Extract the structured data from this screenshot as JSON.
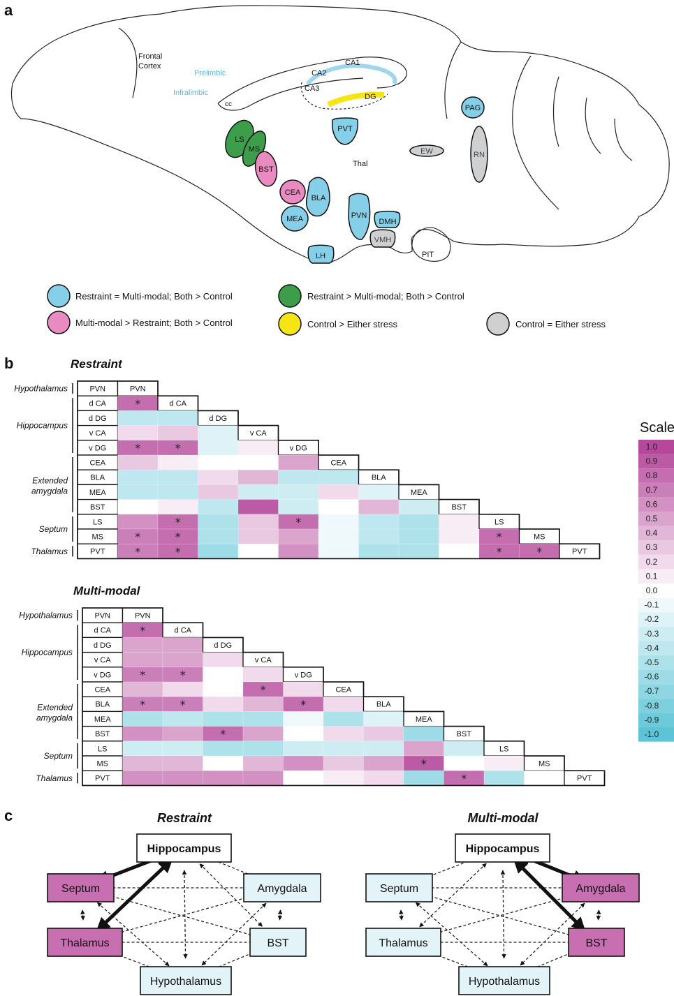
{
  "panels": {
    "a": "a",
    "b": "b",
    "c": "c"
  },
  "brain": {
    "labels": {
      "frontal_cortex_1": "Frontal",
      "frontal_cortex_2": "Cortex",
      "prelimbic": "Prelimbic",
      "infralimbic": "Infralimbic",
      "cc": "cc",
      "ca1": "CA1",
      "ca2": "CA2",
      "ca3": "CA3",
      "dg": "DG",
      "thal": "Thal",
      "pit": "PIT"
    },
    "regions": [
      {
        "id": "PAG",
        "label": "PAG",
        "category": "blue"
      },
      {
        "id": "RN",
        "label": "RN",
        "category": "gray"
      },
      {
        "id": "EW",
        "label": "EW",
        "category": "gray"
      },
      {
        "id": "PVT",
        "label": "PVT",
        "category": "blue"
      },
      {
        "id": "LS",
        "label": "LS",
        "category": "green"
      },
      {
        "id": "MS",
        "label": "MS",
        "category": "green"
      },
      {
        "id": "BST",
        "label": "BST",
        "category": "pink"
      },
      {
        "id": "CEA",
        "label": "CEA",
        "category": "pink"
      },
      {
        "id": "BLA",
        "label": "BLA",
        "category": "blue"
      },
      {
        "id": "MEA",
        "label": "MEA",
        "category": "blue"
      },
      {
        "id": "PVN",
        "label": "PVN",
        "category": "blue"
      },
      {
        "id": "DMH",
        "label": "DMH",
        "category": "blue"
      },
      {
        "id": "VMH",
        "label": "VMH",
        "category": "gray"
      },
      {
        "id": "LH",
        "label": "LH",
        "category": "blue"
      }
    ],
    "colors": {
      "blue": "#86cfe8",
      "green": "#3c9e4a",
      "pink": "#e98ac0",
      "yellow": "#f7e414",
      "gray": "#cfd0d2",
      "prelimbic_text": "#5cb8e0"
    },
    "legend": [
      {
        "category": "blue",
        "text": "Restraint = Multi-modal; Both > Control"
      },
      {
        "category": "green",
        "text": "Restraint > Multi-modal; Both > Control"
      },
      {
        "category": "pink",
        "text": "Multi-modal > Restraint; Both > Control"
      },
      {
        "category": "yellow",
        "text": "Control > Either stress"
      },
      {
        "category": "gray",
        "text": "Control = Either stress"
      }
    ]
  },
  "matrices": {
    "regions": [
      "PVN",
      "d CA",
      "d DG",
      "v CA",
      "v DG",
      "CEA",
      "BLA",
      "MEA",
      "BST",
      "LS",
      "MS",
      "PVT"
    ],
    "groups": [
      {
        "name": "Hypothalamus",
        "rows": [
          0,
          0
        ]
      },
      {
        "name": "Hippocampus",
        "rows": [
          1,
          4
        ]
      },
      {
        "name": "Extended amygdala",
        "line1": "Extended",
        "line2": "amygdala",
        "rows": [
          5,
          8
        ]
      },
      {
        "name": "Septum",
        "rows": [
          9,
          10
        ]
      },
      {
        "name": "Thalamus",
        "rows": [
          11,
          11
        ]
      }
    ],
    "restraint": {
      "title": "Restraint",
      "values": [
        [],
        [
          0.8
        ],
        [
          -0.4,
          -0.4
        ],
        [
          0.2,
          0.3,
          -0.2
        ],
        [
          0.8,
          0.8,
          -0.2,
          0.1
        ],
        [
          0.3,
          0.1,
          0.0,
          0.0,
          0.5
        ],
        [
          -0.4,
          -0.4,
          0.2,
          0.4,
          -0.4,
          -0.4
        ],
        [
          -0.4,
          -0.4,
          0.3,
          -0.3,
          -0.3,
          0.2,
          -0.2
        ],
        [
          0.0,
          0.1,
          -0.4,
          0.9,
          -0.3,
          0.0,
          0.4,
          -0.3
        ],
        [
          0.6,
          0.8,
          -0.5,
          0.3,
          0.8,
          -0.1,
          -0.4,
          -0.5,
          0.1
        ],
        [
          0.7,
          0.8,
          -0.5,
          0.3,
          0.5,
          -0.1,
          -0.4,
          -0.5,
          0.1,
          0.8
        ],
        [
          0.7,
          0.8,
          -0.6,
          0.0,
          0.6,
          -0.1,
          -0.5,
          -0.5,
          0.0,
          0.8,
          0.8
        ]
      ],
      "sig": [
        [
          1,
          0
        ],
        [
          4,
          0
        ],
        [
          4,
          1
        ],
        [
          9,
          1
        ],
        [
          9,
          4
        ],
        [
          10,
          0
        ],
        [
          10,
          1
        ],
        [
          10,
          9
        ],
        [
          11,
          0
        ],
        [
          11,
          1
        ],
        [
          11,
          9
        ],
        [
          11,
          10
        ]
      ]
    },
    "multimodal": {
      "title": "Multi-modal",
      "values": [
        [],
        [
          0.8
        ],
        [
          0.5,
          0.5
        ],
        [
          0.5,
          0.5,
          0.2
        ],
        [
          0.7,
          0.7,
          0.0,
          0.2
        ],
        [
          0.4,
          0.2,
          0.0,
          0.8,
          0.2
        ],
        [
          0.7,
          0.7,
          0.2,
          0.4,
          0.8,
          0.2
        ],
        [
          -0.5,
          -0.4,
          -0.5,
          -0.5,
          -0.1,
          -0.5,
          -0.2
        ],
        [
          0.6,
          0.5,
          0.8,
          0.5,
          0.0,
          0.2,
          0.3,
          -0.6
        ],
        [
          -0.3,
          -0.3,
          -0.5,
          -0.5,
          -0.3,
          -0.3,
          -0.3,
          0.5,
          -0.3
        ],
        [
          0.4,
          0.4,
          0.0,
          0.4,
          0.6,
          0.3,
          0.5,
          0.9,
          0.0,
          0.1
        ],
        [
          0.6,
          0.6,
          0.6,
          0.6,
          0.0,
          0.1,
          0.2,
          -0.6,
          0.8,
          -0.5,
          0.0
        ]
      ],
      "sig": [
        [
          1,
          0
        ],
        [
          4,
          0
        ],
        [
          4,
          1
        ],
        [
          5,
          3
        ],
        [
          6,
          0
        ],
        [
          6,
          1
        ],
        [
          6,
          4
        ],
        [
          8,
          2
        ],
        [
          10,
          7
        ],
        [
          11,
          8
        ]
      ]
    },
    "sig_symbol": "*"
  },
  "scale": {
    "title": "Scale",
    "ticks": [
      "1.0",
      "0.9",
      "0.8",
      "0.7",
      "0.6",
      "0.5",
      "0.4",
      "0.3",
      "0.2",
      "0.1",
      "0.0",
      "-0.1",
      "-0.2",
      "-0.3",
      "-0.4",
      "-0.5",
      "-0.6",
      "-0.7",
      "-0.8",
      "-0.9",
      "-1.0"
    ],
    "pos_color": "#b5489b",
    "neg_color": "#5cc4d6"
  },
  "networks": [
    {
      "title": "Restraint",
      "nodes": {
        "hippocampus": "Hippocampus",
        "septum": "Septum",
        "amygdala": "Amygdala",
        "thalamus": "Thalamus",
        "bst": "BST",
        "hypothalamus": "Hypothalamus"
      },
      "highlight": [
        "septum",
        "thalamus"
      ],
      "strong": [
        [
          "hippocampus",
          "septum"
        ],
        [
          "hippocampus",
          "thalamus"
        ]
      ]
    },
    {
      "title": "Multi-modal",
      "nodes": {
        "hippocampus": "Hippocampus",
        "septum": "Septum",
        "amygdala": "Amygdala",
        "thalamus": "Thalamus",
        "bst": "BST",
        "hypothalamus": "Hypothalamus"
      },
      "highlight": [
        "amygdala",
        "bst"
      ],
      "strong": [
        [
          "hippocampus",
          "amygdala"
        ],
        [
          "hippocampus",
          "bst"
        ]
      ]
    }
  ]
}
